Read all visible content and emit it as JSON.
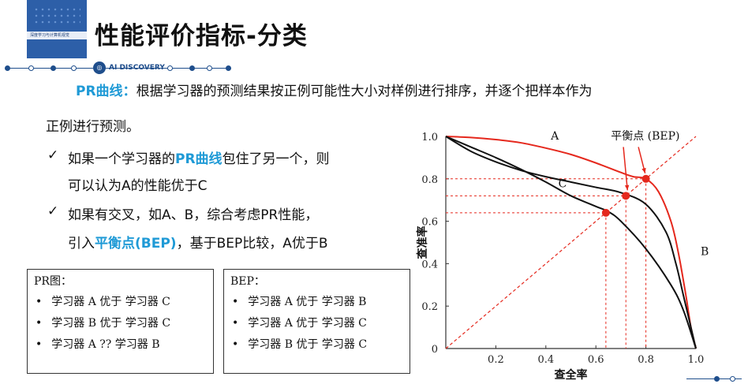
{
  "header": {
    "title": "性能评价指标-分类",
    "brand": "AI DISCOVERY",
    "book_cover_text": "深度学习与计算机视觉"
  },
  "intro": {
    "term": "PR曲线：",
    "text_line1": "根据学习器的预测结果按正例可能性大小对样例进行排序，并逐个把样本作为",
    "text_line2": "正例进行预测。"
  },
  "bullets": [
    {
      "line1_a": "如果一个学习器的",
      "line1_highlight": "PR曲线",
      "line1_b": "包住了另一个，则",
      "line2": "可以认为A的性能优于C"
    },
    {
      "line1": "如果有交叉，如A、B，综合考虑PR性能，",
      "line2_a": "引入",
      "line2_highlight": "平衡点(BEP)",
      "line2_b": "，基于BEP比较，A优于B"
    }
  ],
  "box_pr": {
    "heading": "PR图：",
    "items": [
      "学习器 A 优于 学习器 C",
      "学习器 B 优于 学习器 C",
      "学习器 A  ?? 学习器 B"
    ]
  },
  "box_bep": {
    "heading": "BEP：",
    "items": [
      "学习器 A 优于 学习器 B",
      "学习器 A 优于 学习器 C",
      "学习器 B 优于 学习器 C"
    ]
  },
  "chart_data": {
    "type": "line",
    "xlabel": "查全率",
    "ylabel": "查准率",
    "xlim": [
      0,
      1
    ],
    "ylim": [
      0,
      1
    ],
    "x_ticks": [
      "0",
      "0.2",
      "0.4",
      "0.6",
      "0.8",
      "1.0"
    ],
    "y_ticks": [
      "0",
      "0.2",
      "0.4",
      "0.6",
      "0.8",
      "1.0"
    ],
    "series": [
      {
        "name": "A",
        "color": "#e5281d",
        "points": [
          [
            0,
            1.0
          ],
          [
            0.1,
            0.995
          ],
          [
            0.2,
            0.985
          ],
          [
            0.3,
            0.97
          ],
          [
            0.4,
            0.945
          ],
          [
            0.5,
            0.915
          ],
          [
            0.6,
            0.875
          ],
          [
            0.7,
            0.83
          ],
          [
            0.75,
            0.81
          ],
          [
            0.8,
            0.8
          ],
          [
            0.85,
            0.74
          ],
          [
            0.9,
            0.6
          ],
          [
            0.93,
            0.45
          ],
          [
            0.96,
            0.25
          ],
          [
            0.98,
            0.1
          ],
          [
            1.0,
            0
          ]
        ]
      },
      {
        "name": "B",
        "color": "#111111",
        "points": [
          [
            0,
            1.0
          ],
          [
            0.1,
            0.93
          ],
          [
            0.2,
            0.88
          ],
          [
            0.3,
            0.84
          ],
          [
            0.4,
            0.81
          ],
          [
            0.5,
            0.785
          ],
          [
            0.6,
            0.76
          ],
          [
            0.7,
            0.735
          ],
          [
            0.8,
            0.68
          ],
          [
            0.88,
            0.55
          ],
          [
            0.92,
            0.4
          ],
          [
            0.95,
            0.25
          ],
          [
            0.98,
            0.1
          ],
          [
            1.0,
            0
          ]
        ]
      },
      {
        "name": "C",
        "color": "#111111",
        "points": [
          [
            0,
            1.0
          ],
          [
            0.1,
            0.95
          ],
          [
            0.2,
            0.9
          ],
          [
            0.3,
            0.845
          ],
          [
            0.4,
            0.785
          ],
          [
            0.5,
            0.72
          ],
          [
            0.6,
            0.67
          ],
          [
            0.65,
            0.645
          ],
          [
            0.7,
            0.6
          ],
          [
            0.8,
            0.47
          ],
          [
            0.9,
            0.3
          ],
          [
            0.95,
            0.18
          ],
          [
            1.0,
            0
          ]
        ]
      }
    ],
    "bep_points": [
      {
        "series": "A",
        "x": 0.8,
        "y": 0.8
      },
      {
        "series": "B",
        "x": 0.72,
        "y": 0.72
      },
      {
        "series": "C",
        "x": 0.64,
        "y": 0.64
      }
    ],
    "diagonal": [
      [
        0,
        0
      ],
      [
        1,
        1
      ]
    ],
    "annotation": "平衡点 (BEP)",
    "curve_labels": [
      {
        "text": "A",
        "x": 0.42,
        "y": 1.0
      },
      {
        "text": "B",
        "x": 1.0,
        "y": 0.44
      },
      {
        "text": "C",
        "x": 0.45,
        "y": 0.76
      }
    ]
  }
}
